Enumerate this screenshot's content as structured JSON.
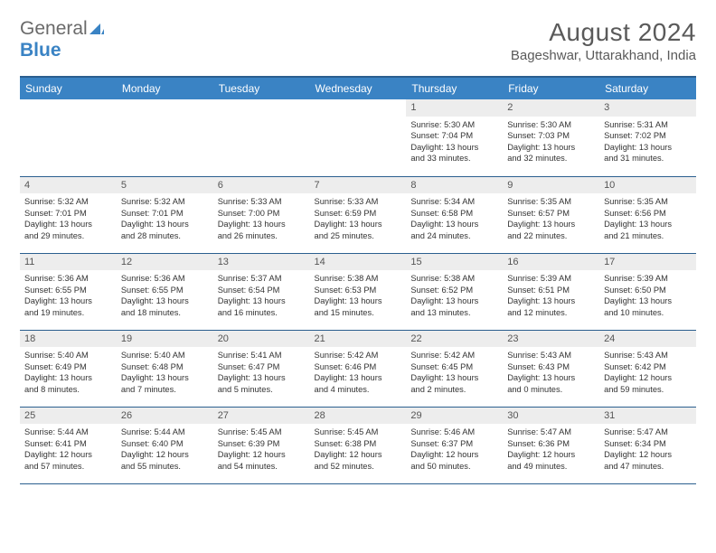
{
  "logo": {
    "text_gray": "General",
    "text_blue": "Blue"
  },
  "title": "August 2024",
  "location": "Bageshwar, Uttarakhand, India",
  "colors": {
    "header_bg": "#3a83c4",
    "header_border": "#2b5f8f",
    "daynum_bg": "#ededed",
    "text_gray": "#6a6a6a",
    "text_body": "#333333"
  },
  "weekdays": [
    "Sunday",
    "Monday",
    "Tuesday",
    "Wednesday",
    "Thursday",
    "Friday",
    "Saturday"
  ],
  "weeks": [
    [
      null,
      null,
      null,
      null,
      {
        "n": "1",
        "sunrise": "5:30 AM",
        "sunset": "7:04 PM",
        "day_h": "13",
        "day_m": "33"
      },
      {
        "n": "2",
        "sunrise": "5:30 AM",
        "sunset": "7:03 PM",
        "day_h": "13",
        "day_m": "32"
      },
      {
        "n": "3",
        "sunrise": "5:31 AM",
        "sunset": "7:02 PM",
        "day_h": "13",
        "day_m": "31"
      }
    ],
    [
      {
        "n": "4",
        "sunrise": "5:32 AM",
        "sunset": "7:01 PM",
        "day_h": "13",
        "day_m": "29"
      },
      {
        "n": "5",
        "sunrise": "5:32 AM",
        "sunset": "7:01 PM",
        "day_h": "13",
        "day_m": "28"
      },
      {
        "n": "6",
        "sunrise": "5:33 AM",
        "sunset": "7:00 PM",
        "day_h": "13",
        "day_m": "26"
      },
      {
        "n": "7",
        "sunrise": "5:33 AM",
        "sunset": "6:59 PM",
        "day_h": "13",
        "day_m": "25"
      },
      {
        "n": "8",
        "sunrise": "5:34 AM",
        "sunset": "6:58 PM",
        "day_h": "13",
        "day_m": "24"
      },
      {
        "n": "9",
        "sunrise": "5:35 AM",
        "sunset": "6:57 PM",
        "day_h": "13",
        "day_m": "22"
      },
      {
        "n": "10",
        "sunrise": "5:35 AM",
        "sunset": "6:56 PM",
        "day_h": "13",
        "day_m": "21"
      }
    ],
    [
      {
        "n": "11",
        "sunrise": "5:36 AM",
        "sunset": "6:55 PM",
        "day_h": "13",
        "day_m": "19"
      },
      {
        "n": "12",
        "sunrise": "5:36 AM",
        "sunset": "6:55 PM",
        "day_h": "13",
        "day_m": "18"
      },
      {
        "n": "13",
        "sunrise": "5:37 AM",
        "sunset": "6:54 PM",
        "day_h": "13",
        "day_m": "16"
      },
      {
        "n": "14",
        "sunrise": "5:38 AM",
        "sunset": "6:53 PM",
        "day_h": "13",
        "day_m": "15"
      },
      {
        "n": "15",
        "sunrise": "5:38 AM",
        "sunset": "6:52 PM",
        "day_h": "13",
        "day_m": "13"
      },
      {
        "n": "16",
        "sunrise": "5:39 AM",
        "sunset": "6:51 PM",
        "day_h": "13",
        "day_m": "12"
      },
      {
        "n": "17",
        "sunrise": "5:39 AM",
        "sunset": "6:50 PM",
        "day_h": "13",
        "day_m": "10"
      }
    ],
    [
      {
        "n": "18",
        "sunrise": "5:40 AM",
        "sunset": "6:49 PM",
        "day_h": "13",
        "day_m": "8"
      },
      {
        "n": "19",
        "sunrise": "5:40 AM",
        "sunset": "6:48 PM",
        "day_h": "13",
        "day_m": "7"
      },
      {
        "n": "20",
        "sunrise": "5:41 AM",
        "sunset": "6:47 PM",
        "day_h": "13",
        "day_m": "5"
      },
      {
        "n": "21",
        "sunrise": "5:42 AM",
        "sunset": "6:46 PM",
        "day_h": "13",
        "day_m": "4"
      },
      {
        "n": "22",
        "sunrise": "5:42 AM",
        "sunset": "6:45 PM",
        "day_h": "13",
        "day_m": "2"
      },
      {
        "n": "23",
        "sunrise": "5:43 AM",
        "sunset": "6:43 PM",
        "day_h": "13",
        "day_m": "0"
      },
      {
        "n": "24",
        "sunrise": "5:43 AM",
        "sunset": "6:42 PM",
        "day_h": "12",
        "day_m": "59"
      }
    ],
    [
      {
        "n": "25",
        "sunrise": "5:44 AM",
        "sunset": "6:41 PM",
        "day_h": "12",
        "day_m": "57"
      },
      {
        "n": "26",
        "sunrise": "5:44 AM",
        "sunset": "6:40 PM",
        "day_h": "12",
        "day_m": "55"
      },
      {
        "n": "27",
        "sunrise": "5:45 AM",
        "sunset": "6:39 PM",
        "day_h": "12",
        "day_m": "54"
      },
      {
        "n": "28",
        "sunrise": "5:45 AM",
        "sunset": "6:38 PM",
        "day_h": "12",
        "day_m": "52"
      },
      {
        "n": "29",
        "sunrise": "5:46 AM",
        "sunset": "6:37 PM",
        "day_h": "12",
        "day_m": "50"
      },
      {
        "n": "30",
        "sunrise": "5:47 AM",
        "sunset": "6:36 PM",
        "day_h": "12",
        "day_m": "49"
      },
      {
        "n": "31",
        "sunrise": "5:47 AM",
        "sunset": "6:34 PM",
        "day_h": "12",
        "day_m": "47"
      }
    ]
  ]
}
